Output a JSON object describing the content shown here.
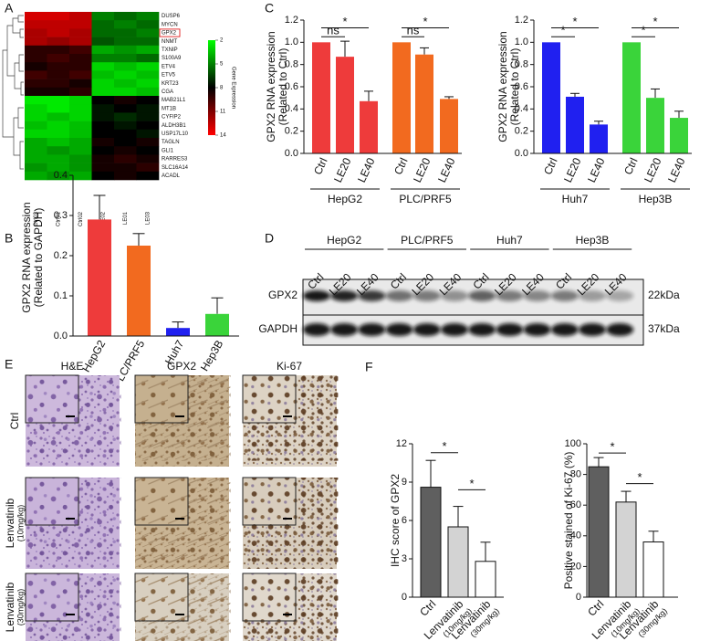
{
  "panel_labels": [
    "A",
    "B",
    "C",
    "D",
    "E",
    "F"
  ],
  "chart_data": [
    {
      "type": "heatmap",
      "x": [
        "Ctrl03",
        "Ctrl01",
        "Ctrl02",
        "LE02",
        "LE01",
        "LE03"
      ],
      "y": [
        "DUSP6",
        "MYCN",
        "GPX2",
        "NNMT",
        "TXNIP",
        "S100A9",
        "ETV4",
        "ETV5",
        "KRT23",
        "CGA",
        "MAB21L1",
        "MT1B",
        "CYFIP2",
        "ALDH3B1",
        "USP17L10",
        "TAGLN",
        "GLI1",
        "RARRES3",
        "SLC16A14",
        "ACADL"
      ],
      "values": [
        [
          13,
          13,
          12.5,
          5,
          5.5,
          5
        ],
        [
          12.5,
          12.5,
          12.5,
          5.5,
          5,
          5.5
        ],
        [
          12,
          12.5,
          12,
          5.5,
          5.5,
          5
        ],
        [
          12,
          11.5,
          12,
          6,
          5.5,
          5.5
        ],
        [
          9,
          9,
          9.5,
          4,
          4.5,
          4
        ],
        [
          9,
          9.5,
          9,
          5,
          5,
          5.5
        ],
        [
          8.5,
          9,
          9,
          3,
          3.5,
          3
        ],
        [
          9.5,
          9,
          9.5,
          3.5,
          3,
          3.5
        ],
        [
          9,
          9,
          8.5,
          3,
          3.5,
          3
        ],
        [
          8.5,
          8.5,
          9,
          3,
          3,
          3.5
        ],
        [
          2.5,
          2.5,
          3,
          8,
          8.5,
          8
        ],
        [
          3,
          2.5,
          3,
          7.5,
          8,
          7.5
        ],
        [
          3,
          3.5,
          3,
          7.5,
          7,
          7.5
        ],
        [
          3.5,
          3,
          3.5,
          8,
          7.5,
          8
        ],
        [
          3,
          3,
          3.5,
          8,
          8,
          7.5
        ],
        [
          4,
          3.5,
          4,
          8.5,
          8,
          8.5
        ],
        [
          4,
          4.5,
          4,
          8,
          8.5,
          8
        ],
        [
          4,
          4,
          4.5,
          8.5,
          9,
          8.5
        ],
        [
          4.5,
          4,
          4.5,
          8.5,
          8.5,
          9
        ],
        [
          4,
          4.5,
          4,
          8,
          8.5,
          8
        ]
      ],
      "clim": [
        2,
        14
      ],
      "cticks": [
        2,
        5,
        8,
        11,
        14
      ],
      "colorbar_label": "Gene Expression"
    },
    {
      "type": "grouped-bar",
      "ylabel": [
        "GPX2 RNA expression",
        "(Related to Ctrl)"
      ],
      "ylim": [
        0,
        1.2
      ],
      "yticks": [
        {
          "value": 0,
          "label": "0.0"
        },
        0.2,
        0.4,
        0.6,
        0.8,
        {
          "value": 1,
          "label": "1.0"
        },
        1.2
      ],
      "groups": [
        {
          "name": "HepG2",
          "color": "#ee3b3b",
          "categories": [
            "Ctrl",
            "LE20",
            "LE40"
          ],
          "values": [
            1,
            0.87,
            0.47
          ],
          "errors": [
            null,
            0.14,
            0.09
          ]
        },
        {
          "name": "PLC/PRF5",
          "color": "#f26a1f",
          "categories": [
            "Ctrl",
            "LE20",
            "LE40"
          ],
          "values": [
            1,
            0.89,
            0.49
          ],
          "errors": [
            null,
            0.06,
            0.02
          ]
        }
      ],
      "annotations": [
        "*",
        "ns",
        "*",
        "ns"
      ]
    },
    {
      "type": "grouped-bar",
      "ylabel": [
        "GPX2 RNA expression",
        "(Related to Ctrl)"
      ],
      "ylim": [
        0,
        1.2
      ],
      "yticks": [
        {
          "value": 0,
          "label": "0.0"
        },
        0.2,
        0.4,
        0.6,
        0.8,
        {
          "value": 1,
          "label": "1.0"
        },
        1.2
      ],
      "groups": [
        {
          "name": "Huh7",
          "color": "#2020f0",
          "categories": [
            "Ctrl",
            "LE20",
            "LE40"
          ],
          "values": [
            1,
            0.51,
            0.26
          ],
          "errors": [
            null,
            0.03,
            0.03
          ]
        },
        {
          "name": "Hep3B",
          "color": "#3ad43a",
          "categories": [
            "Ctrl",
            "LE20",
            "LE40"
          ],
          "values": [
            1,
            0.5,
            0.32
          ],
          "errors": [
            null,
            0.08,
            0.06
          ]
        }
      ],
      "annotations": [
        "*",
        "*",
        "*",
        "*"
      ]
    },
    {
      "type": "bar",
      "ylabel": [
        "GPX2 RNA expression",
        "(Related to GAPDH)"
      ],
      "ylim": [
        0,
        0.4
      ],
      "yticks": [
        {
          "value": 0,
          "label": "0.0"
        },
        0.1,
        0.2,
        0.3,
        0.4
      ],
      "categories": [
        "HepG2",
        "PLC/PRF5",
        "Huh7",
        "Hep3B"
      ],
      "values": [
        0.29,
        0.225,
        0.02,
        0.055
      ],
      "errors": [
        0.06,
        0.03,
        0.015,
        0.04
      ],
      "colors": [
        "#ee3b3b",
        "#f26a1f",
        "#2020f0",
        "#3ad43a"
      ]
    },
    {
      "type": "bar",
      "ylabel": [
        "IHC score of GPX2"
      ],
      "ylim": [
        0,
        12
      ],
      "yticks": [
        0,
        3,
        6,
        9,
        12
      ],
      "categories": [
        "Ctrl",
        "Lenvatinib",
        "Lenvatinib"
      ],
      "sublabels": [
        null,
        "(10mg/kg)",
        "(30mg/kg)"
      ],
      "values": [
        8.6,
        5.5,
        2.8
      ],
      "errors": [
        2.1,
        1.6,
        1.5
      ],
      "colors": [
        "#5f5f5f",
        "#d3d3d3",
        "#ffffff"
      ],
      "annotations": [
        "*",
        "*"
      ]
    },
    {
      "type": "bar",
      "ylabel": [
        "Positive stained of Ki-67 (%)"
      ],
      "ylim": [
        0,
        100
      ],
      "yticks": [
        0,
        20,
        40,
        60,
        80,
        100
      ],
      "categories": [
        "Ctrl",
        "Lenvatinib",
        "Lenvatinib"
      ],
      "sublabels": [
        null,
        "(10mg/kg)",
        "(30mg/kg)"
      ],
      "values": [
        85,
        62,
        36
      ],
      "errors": [
        6,
        7,
        7
      ],
      "colors": [
        "#5f5f5f",
        "#d3d3d3",
        "#ffffff"
      ],
      "annotations": [
        "*",
        "*"
      ]
    }
  ],
  "blot": {
    "groups": [
      "HepG2",
      "PLC/PRF5",
      "Huh7",
      "Hep3B"
    ],
    "lanes": [
      "Ctrl",
      "LE20",
      "LE40"
    ],
    "rows": [
      {
        "protein": "GPX2",
        "size": "22kDa"
      },
      {
        "protein": "GAPDH",
        "size": "37kDa"
      }
    ]
  },
  "histology": {
    "columns": [
      "H&E",
      "GPX2",
      "Ki-67"
    ],
    "rows": [
      {
        "label": "Ctrl"
      },
      {
        "label": "Lenvatinib",
        "dose": "(10mg/kg)"
      },
      {
        "label": "Lenvatinib",
        "dose": "(30mg/kg)"
      }
    ]
  }
}
